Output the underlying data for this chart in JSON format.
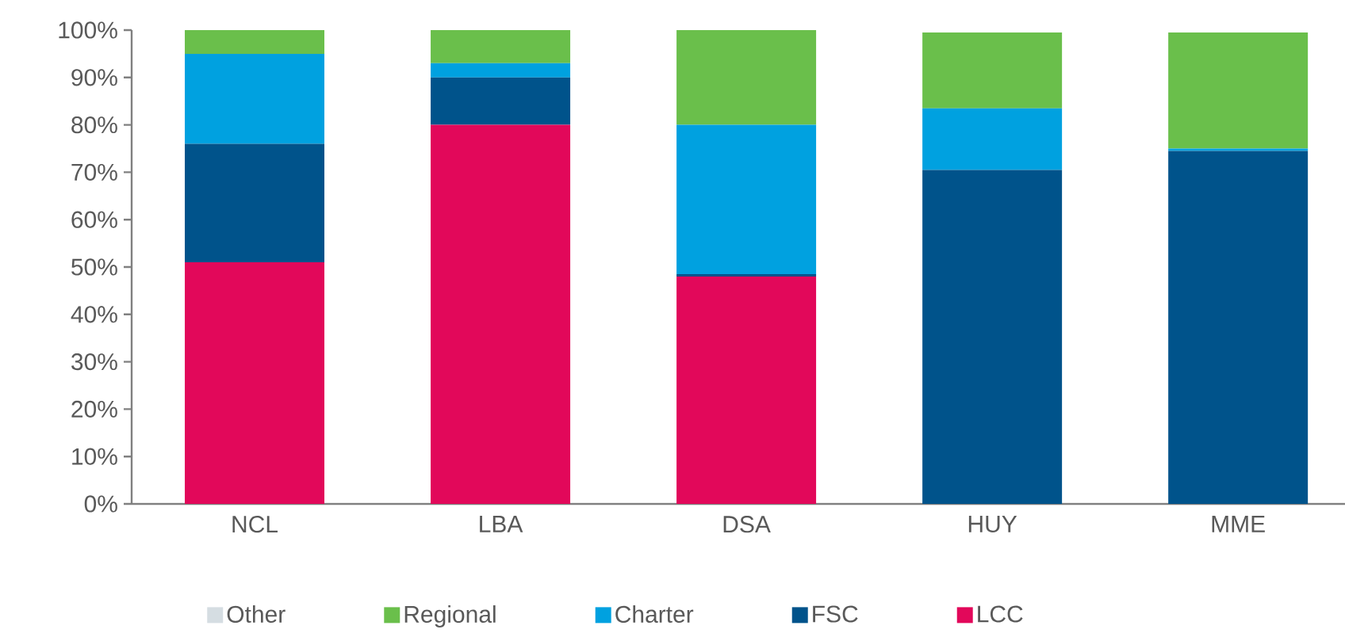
{
  "chart_data": {
    "type": "bar",
    "stacked": true,
    "categories": [
      "NCL",
      "LBA",
      "DSA",
      "HUY",
      "MME"
    ],
    "series": [
      {
        "name": "LCC",
        "color": "#e2085a",
        "values": [
          51,
          80,
          48,
          0,
          0
        ]
      },
      {
        "name": "FSC",
        "color": "#00538b",
        "values": [
          25,
          10,
          0.5,
          70.5,
          74.5
        ]
      },
      {
        "name": "Charter",
        "color": "#00a1e0",
        "values": [
          19,
          3,
          31.5,
          13,
          0.5
        ]
      },
      {
        "name": "Regional",
        "color": "#6abf4b",
        "values": [
          5,
          7,
          20,
          16,
          24.5
        ]
      },
      {
        "name": "Other",
        "color": "#d5dde2",
        "values": [
          0,
          0,
          0,
          null,
          null
        ]
      }
    ],
    "ylim": [
      0,
      100
    ],
    "yticks": [
      {
        "value": 0,
        "label": "0%"
      },
      {
        "value": 10,
        "label": "10%"
      },
      {
        "value": 20,
        "label": "20%"
      },
      {
        "value": 30,
        "label": "30%"
      },
      {
        "value": 40,
        "label": "40%"
      },
      {
        "value": 50,
        "label": "50%"
      },
      {
        "value": 60,
        "label": "60%"
      },
      {
        "value": 70,
        "label": "70%"
      },
      {
        "value": 80,
        "label": "80%"
      },
      {
        "value": 90,
        "label": "90%"
      },
      {
        "value": 100,
        "label": "100%"
      }
    ],
    "legend": "bottom",
    "grid": false
  }
}
